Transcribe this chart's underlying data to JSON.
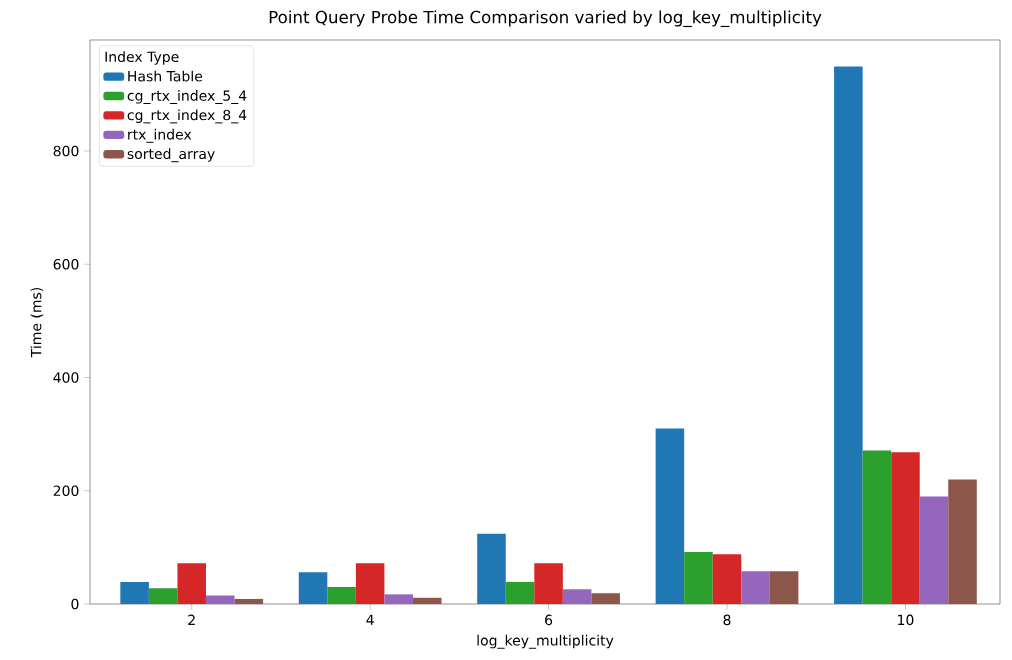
{
  "chart_data": {
    "type": "bar",
    "title": "Point Query Probe Time Comparison varied by log_key_multiplicity",
    "xlabel": "log_key_multiplicity",
    "ylabel": "Time (ms)",
    "legend_title": "Index Type",
    "legend": "top left",
    "grid": false,
    "categories": [
      "2",
      "4",
      "6",
      "8",
      "10"
    ],
    "ylim": [
      0,
      996
    ],
    "yticks": [
      0,
      200,
      400,
      600,
      800
    ],
    "series": [
      {
        "name": "Hash Table",
        "color": "#1f77b4",
        "values": [
          39,
          56,
          124,
          310,
          949
        ]
      },
      {
        "name": "cg_rtx_index_5_4",
        "color": "#2ca02c",
        "values": [
          28,
          30,
          39,
          92,
          271
        ]
      },
      {
        "name": "cg_rtx_index_8_4",
        "color": "#d62728",
        "values": [
          72,
          72,
          72,
          88,
          268
        ]
      },
      {
        "name": "rtx_index",
        "color": "#9467bd",
        "values": [
          15,
          17,
          26,
          58,
          190
        ]
      },
      {
        "name": "sorted_array",
        "color": "#8c564b",
        "values": [
          9,
          11,
          19,
          58,
          220
        ]
      }
    ]
  }
}
